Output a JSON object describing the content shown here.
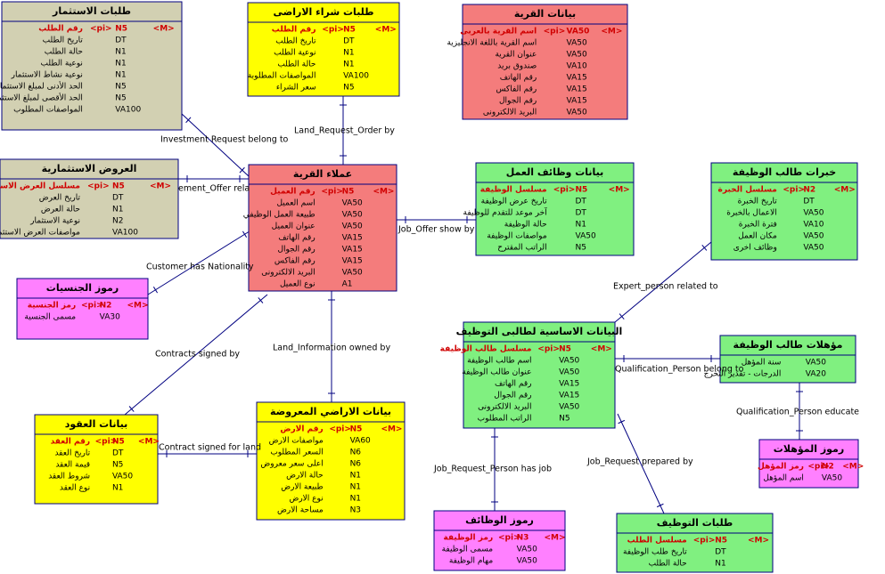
{
  "entities": [
    {
      "title": "طلبات الاستثمار",
      "rows": [
        {
          "name": "رقم الطلب",
          "key": "<pi>",
          "type": "N5",
          "mandatory": "<M>"
        },
        {
          "name": "تاريخ الطلب",
          "type": "DT"
        },
        {
          "name": "حالة الطلب",
          "type": "N1"
        },
        {
          "name": "نوعية الطلب",
          "type": "N1"
        },
        {
          "name": "نوعية نشاط الاستثمار",
          "type": "N1"
        },
        {
          "name": "الحد الأدنى لمبلغ الاستثمار",
          "type": "N5"
        },
        {
          "name": "الحد الأقصى لمبلغ الاستثمار",
          "type": "N5"
        },
        {
          "name": "المواصفات المطلوب",
          "type": "VA100"
        }
      ]
    },
    {
      "title": "طلبات شراء الاراضى",
      "rows": [
        {
          "name": "رقم الطلب",
          "key": "<pi>",
          "type": "N5",
          "mandatory": "<M>"
        },
        {
          "name": "تاريخ الطلب",
          "type": "DT"
        },
        {
          "name": "نوعية الطلب",
          "type": "N1"
        },
        {
          "name": "حالة الطلب",
          "type": "N1"
        },
        {
          "name": "المواصفات المطلوبة",
          "type": "VA100"
        },
        {
          "name": "سعر الشراء",
          "type": "N5"
        }
      ]
    },
    {
      "title": "بيانات القرية",
      "rows": [
        {
          "name": "اسم القرية بالعربى",
          "key": "<pi>",
          "type": "VA50",
          "mandatory": "<M>"
        },
        {
          "name": "اسم القرية باللغة الانجليزية",
          "type": "VA50"
        },
        {
          "name": "عنوان القرية",
          "type": "VA50"
        },
        {
          "name": "صندوق بريد",
          "type": "VA10"
        },
        {
          "name": "رقم الهاتف",
          "type": "VA15"
        },
        {
          "name": "رقم الفاكس",
          "type": "VA15"
        },
        {
          "name": "رقم الجوال",
          "type": "VA15"
        },
        {
          "name": "البريد الالكترونى",
          "type": "VA50"
        }
      ]
    },
    {
      "title": "العروض الاستثمارية",
      "rows": [
        {
          "name": "مسلسل العرض الاستثمارى",
          "key": "<pi>",
          "type": "N5",
          "mandatory": "<M>"
        },
        {
          "name": "تاريخ العرض",
          "type": "DT"
        },
        {
          "name": "حالة العرض",
          "type": "N1"
        },
        {
          "name": "نوعية الاستثمار",
          "type": "N2"
        },
        {
          "name": "مواصفات العرض الاستثمارى",
          "type": "VA100"
        }
      ]
    },
    {
      "title": "عملاء القرية",
      "rows": [
        {
          "name": "رقم العميل",
          "key": "<pi>",
          "type": "N5",
          "mandatory": "<M>"
        },
        {
          "name": "اسم العميل",
          "type": "VA50"
        },
        {
          "name": "طبيعة العمل الوظيفي",
          "type": "VA50"
        },
        {
          "name": "عنوان العميل",
          "type": "VA50"
        },
        {
          "name": "رقم الهاتف",
          "type": "VA15"
        },
        {
          "name": "رقم الجوال",
          "type": "VA15"
        },
        {
          "name": "رقم الفاكس",
          "type": "VA15"
        },
        {
          "name": "البريد الالكترونى",
          "type": "VA50"
        },
        {
          "name": "نوع العميل",
          "type": "A1"
        }
      ]
    },
    {
      "title": "بيانات وظائف العمل",
      "rows": [
        {
          "name": "مسلسل الوظيفة",
          "key": "<pi>",
          "type": "N5",
          "mandatory": "<M>"
        },
        {
          "name": "تاريخ عرض الوظيفة",
          "type": "DT"
        },
        {
          "name": "آخر موعد للتقدم للوظيفة",
          "type": "DT"
        },
        {
          "name": "حالة الوظيفة",
          "type": "N1"
        },
        {
          "name": "مواصفات الوظيفة",
          "type": "VA50"
        },
        {
          "name": "الراتب المقترح",
          "type": "N5"
        }
      ]
    },
    {
      "title": "خبرات طالب الوظيفة",
      "rows": [
        {
          "name": "مسلسل الخبرة",
          "key": "<pi>",
          "type": "N2",
          "mandatory": "<M>"
        },
        {
          "name": "تاريخ الخبرة",
          "type": "DT"
        },
        {
          "name": "الاعمال بالخبرة",
          "type": "VA50"
        },
        {
          "name": "فترة الخبرة",
          "type": "VA10"
        },
        {
          "name": "مكان العمل",
          "type": "VA50"
        },
        {
          "name": "وظائف اخرى",
          "type": "VA50"
        }
      ]
    },
    {
      "title": "رموز الجنسيات",
      "rows": [
        {
          "name": "رمز الجنسية",
          "key": "<pi>",
          "type": "N2",
          "mandatory": "<M>"
        },
        {
          "name": "مسمى الجنسية",
          "type": "VA30"
        }
      ]
    },
    {
      "title": "البيانات الاساسية لطالبى التوظيف",
      "rows": [
        {
          "name": "مسلسل طالب الوظيفة",
          "key": "<pi>",
          "type": "N5",
          "mandatory": "<M>"
        },
        {
          "name": "اسم طالب الوظيفة",
          "type": "VA50"
        },
        {
          "name": "عنوان طالب الوظيفة",
          "type": "VA50"
        },
        {
          "name": "رقم الهاتف",
          "type": "VA15"
        },
        {
          "name": "رقم الجوال",
          "type": "VA15"
        },
        {
          "name": "البريد الالكترونى",
          "type": "VA50"
        },
        {
          "name": "الراتب المطلوب",
          "type": "N5"
        }
      ]
    },
    {
      "title": "مؤهلات طالب الوظيفة",
      "rows": [
        {
          "name": "سنة المؤهل",
          "type": "VA50"
        },
        {
          "name": "الدرجات - تقدير التخرج",
          "type": "VA20"
        }
      ]
    },
    {
      "title": "رموز المؤهلات",
      "rows": [
        {
          "name": "رمز المؤهل",
          "key": "<pi>",
          "type": "N2",
          "mandatory": "<M>"
        },
        {
          "name": "اسم المؤهل",
          "type": "VA50"
        }
      ]
    },
    {
      "title": "بيانات العقود",
      "rows": [
        {
          "name": "رقم العقد",
          "key": "<pi>",
          "type": "N5",
          "mandatory": "<M>"
        },
        {
          "name": "تاريخ العقد",
          "type": "DT"
        },
        {
          "name": "قيمة العقد",
          "type": "N5"
        },
        {
          "name": "شروط العقد",
          "type": "VA50"
        },
        {
          "name": "نوع العقد",
          "type": "N1"
        }
      ]
    },
    {
      "title": "بيانات الاراضي المعروضة",
      "rows": [
        {
          "name": "رقم الارض",
          "key": "<pi>",
          "type": "N5",
          "mandatory": "<M>"
        },
        {
          "name": "مواصفات الارض",
          "type": "VA60"
        },
        {
          "name": "السعر المطلوب",
          "type": "N6"
        },
        {
          "name": "اعلى سعر معروض",
          "type": "N6"
        },
        {
          "name": "حالة الارض",
          "type": "N1"
        },
        {
          "name": "طبيعة الارض",
          "type": "N1"
        },
        {
          "name": "نوع الارض",
          "type": "N1"
        },
        {
          "name": "مساحة الارض",
          "type": "N3"
        }
      ]
    },
    {
      "title": "رموز الوظائف",
      "rows": [
        {
          "name": "رمز الوظيفة",
          "key": "<pi>",
          "type": "N3",
          "mandatory": "<M>"
        },
        {
          "name": "مسمى الوظيفة",
          "type": "VA50"
        },
        {
          "name": "مهام الوظيفة",
          "type": "VA50"
        }
      ]
    },
    {
      "title": "طلبات التوظيف",
      "rows": [
        {
          "name": "مسلسل الطلب",
          "key": "<pi>",
          "type": "N5",
          "mandatory": "<M>"
        },
        {
          "name": "تاريخ طلب الوظيفة",
          "type": "DT"
        },
        {
          "name": "حالة الطلب",
          "type": "N1"
        }
      ]
    }
  ],
  "relationships": [
    {
      "label": "Investment Request belong to"
    },
    {
      "label": "Land_Request_Order by"
    },
    {
      "label": "ement_Offer rela"
    },
    {
      "label": "Job_Offer show by"
    },
    {
      "label": "Customer has Nationality"
    },
    {
      "label": "Expert_person related to"
    },
    {
      "label": "Land_Information owned by"
    },
    {
      "label": "Contracts signed by"
    },
    {
      "label": "Qualification_Person belong to"
    },
    {
      "label": "Qualification_Person educate"
    },
    {
      "label": "Contract signed for land"
    },
    {
      "label": "Job_Request_Person has job"
    },
    {
      "label": "Job_Request prepared by"
    }
  ]
}
